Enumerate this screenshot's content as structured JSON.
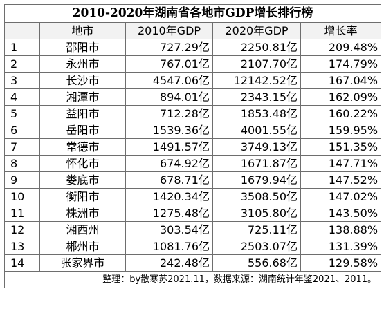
{
  "table": {
    "title": "2010-2020年湖南省各地市GDP增长排行榜",
    "headers": [
      "",
      "地市",
      "2010年GDP",
      "2020年GDP",
      "增长率"
    ],
    "rows": [
      {
        "rank": "1",
        "city": "邵阳市",
        "gdp2010": "727.29亿",
        "gdp2020": "2250.81亿",
        "rate": "209.48%"
      },
      {
        "rank": "2",
        "city": "永州市",
        "gdp2010": "767.01亿",
        "gdp2020": "2107.70亿",
        "rate": "174.79%"
      },
      {
        "rank": "3",
        "city": "长沙市",
        "gdp2010": "4547.06亿",
        "gdp2020": "12142.52亿",
        "rate": "167.04%"
      },
      {
        "rank": "4",
        "city": "湘潭市",
        "gdp2010": "894.01亿",
        "gdp2020": "2343.15亿",
        "rate": "162.09%"
      },
      {
        "rank": "5",
        "city": "益阳市",
        "gdp2010": "712.28亿",
        "gdp2020": "1853.48亿",
        "rate": "160.22%"
      },
      {
        "rank": "6",
        "city": "岳阳市",
        "gdp2010": "1539.36亿",
        "gdp2020": "4001.55亿",
        "rate": "159.95%"
      },
      {
        "rank": "7",
        "city": "常德市",
        "gdp2010": "1491.57亿",
        "gdp2020": "3749.13亿",
        "rate": "151.35%"
      },
      {
        "rank": "8",
        "city": "怀化市",
        "gdp2010": "674.92亿",
        "gdp2020": "1671.87亿",
        "rate": "147.71%"
      },
      {
        "rank": "9",
        "city": "娄底市",
        "gdp2010": "678.71亿",
        "gdp2020": "1679.94亿",
        "rate": "147.52%"
      },
      {
        "rank": "10",
        "city": "衡阳市",
        "gdp2010": "1420.34亿",
        "gdp2020": "3508.50亿",
        "rate": "147.02%"
      },
      {
        "rank": "11",
        "city": "株洲市",
        "gdp2010": "1275.48亿",
        "gdp2020": "3105.80亿",
        "rate": "143.50%"
      },
      {
        "rank": "12",
        "city": "湘西州",
        "gdp2010": "303.54亿",
        "gdp2020": "725.11亿",
        "rate": "138.88%"
      },
      {
        "rank": "13",
        "city": "郴州市",
        "gdp2010": "1081.76亿",
        "gdp2020": "2503.07亿",
        "rate": "131.39%"
      },
      {
        "rank": "14",
        "city": "张家界市",
        "gdp2010": "242.48亿",
        "gdp2020": "556.68亿",
        "rate": "129.58%"
      }
    ],
    "footer": "整理：by散寒苏2021.11，数据来源：湖南统计年鉴2021、2011。"
  },
  "colors": {
    "header_bg": "#f2f2f2",
    "grid_line": "#6e6e6e",
    "text": "#000000"
  }
}
